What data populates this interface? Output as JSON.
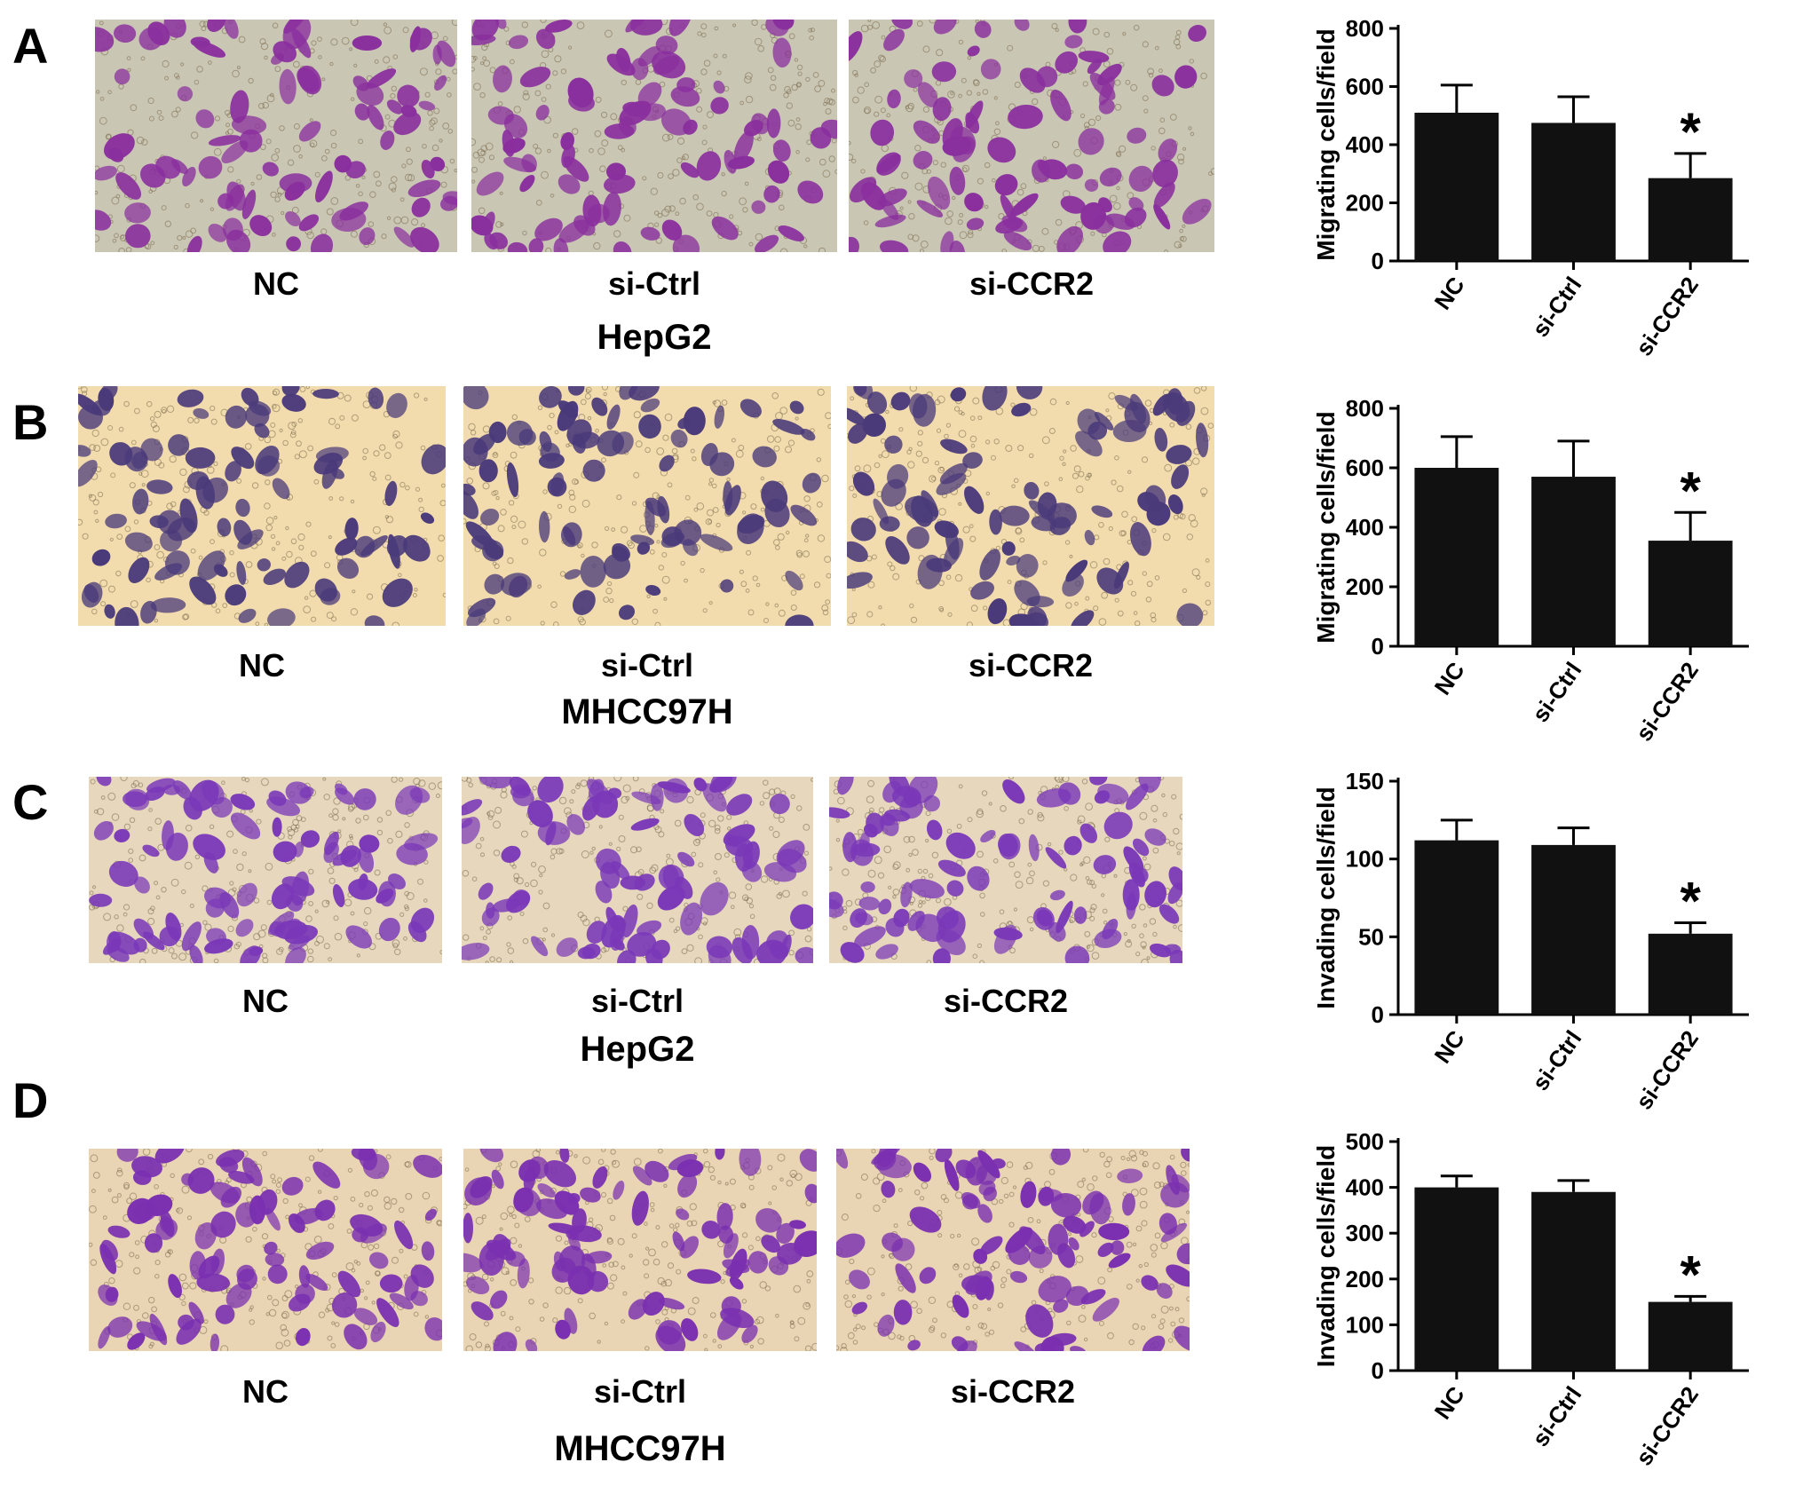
{
  "colors": {
    "bar": "#111111",
    "stain_A": "#8a2f9e",
    "stain_B": "#4a3a7a",
    "stain_C": "#7a38b8",
    "stain_D": "#7a30b0",
    "bg_A": "#c9c6b4",
    "bg_B": "#f2dcae",
    "bg_C": "#e6d7bd",
    "bg_D": "#e9d4b3"
  },
  "panels": [
    {
      "letter": "A",
      "image_labels": [
        "NC",
        "si-Ctrl",
        "si-CCR2"
      ],
      "cell_line": "HepG2"
    },
    {
      "letter": "B",
      "image_labels": [
        "NC",
        "si-Ctrl",
        "si-CCR2"
      ],
      "cell_line": "MHCC97H"
    },
    {
      "letter": "C",
      "image_labels": [
        "NC",
        "si-Ctrl",
        "si-CCR2"
      ],
      "cell_line": "HepG2"
    },
    {
      "letter": "D",
      "image_labels": [
        "NC",
        "si-Ctrl",
        "si-CCR2"
      ],
      "cell_line": "MHCC97H"
    }
  ],
  "chart_data": [
    {
      "type": "bar",
      "panel": "A",
      "categories": [
        "NC",
        "si-Ctrl",
        "si-CCR2"
      ],
      "values": [
        510,
        475,
        285
      ],
      "errors": [
        95,
        90,
        85
      ],
      "significance": [
        "",
        "",
        "*"
      ],
      "ylabel": "Migrating cells/field",
      "ylim": [
        0,
        800
      ],
      "yticks": [
        0,
        200,
        400,
        600,
        800
      ]
    },
    {
      "type": "bar",
      "panel": "B",
      "categories": [
        "NC",
        "si-Ctrl",
        "si-CCR2"
      ],
      "values": [
        600,
        570,
        355
      ],
      "errors": [
        105,
        120,
        95
      ],
      "significance": [
        "",
        "",
        "*"
      ],
      "ylabel": "Migrating cells/field",
      "ylim": [
        0,
        800
      ],
      "yticks": [
        0,
        200,
        400,
        600,
        800
      ]
    },
    {
      "type": "bar",
      "panel": "C",
      "categories": [
        "NC",
        "si-Ctrl",
        "si-CCR2"
      ],
      "values": [
        112,
        109,
        52
      ],
      "errors": [
        13,
        11,
        7
      ],
      "significance": [
        "",
        "",
        "*"
      ],
      "ylabel": "Invading cells/field",
      "ylim": [
        0,
        150
      ],
      "yticks": [
        0,
        50,
        100,
        150
      ]
    },
    {
      "type": "bar",
      "panel": "D",
      "categories": [
        "NC",
        "si-Ctrl",
        "si-CCR2"
      ],
      "values": [
        400,
        390,
        150
      ],
      "errors": [
        25,
        25,
        12
      ],
      "significance": [
        "",
        "",
        "*"
      ],
      "ylabel": "Invading cells/field",
      "ylim": [
        0,
        500
      ],
      "yticks": [
        0,
        100,
        200,
        300,
        400,
        500
      ]
    }
  ]
}
